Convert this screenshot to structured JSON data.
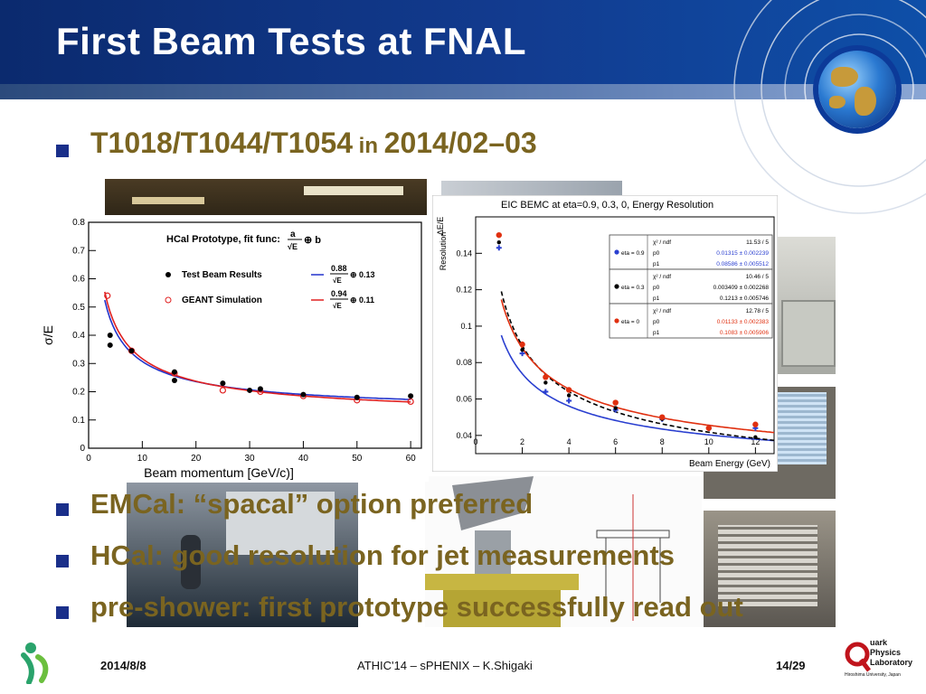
{
  "slide": {
    "title": "First Beam Tests at FNAL",
    "bullets": [
      {
        "main": "T1018/T1044/T1054",
        "mid": " in ",
        "date": "2014/02–03"
      },
      {
        "text": "EMCal: “spacal” option preferred"
      },
      {
        "text": "HCal: good resolution for jet measurements"
      },
      {
        "text": "pre-shower: first prototype successfully read out"
      }
    ],
    "footer": {
      "date": "2014/8/8",
      "center": "ATHIC'14 – sPHENIX – K.Shigaki",
      "page": "14/29"
    },
    "logo_right": {
      "line1": "uark",
      "line2": "Physics",
      "line3": "Laboratory",
      "line4": "Hiroshima University, Japan"
    },
    "colors": {
      "banner": "#123b8f",
      "bullet_text": "#7a6420",
      "bullet_square": "#1a2f8a"
    }
  },
  "chart_data": [
    {
      "type": "scatter",
      "title": "HCal Prototype, fit func:",
      "xlabel": "Beam momentum [GeV/c)]",
      "ylabel": "σ/E",
      "xlim": [
        0,
        62
      ],
      "ylim": [
        0,
        0.8
      ],
      "xticks": [
        0,
        10,
        20,
        30,
        40,
        50,
        60
      ],
      "yticks": [
        0,
        0.1,
        0.2,
        0.3,
        0.4,
        0.5,
        0.6,
        0.7,
        0.8
      ],
      "legend": [
        "Test Beam Results",
        "GEANT Simulation"
      ],
      "fit_labels": [
        "0.88",
        "0.13",
        "0.94",
        "0.11"
      ],
      "series": [
        {
          "name": "Test Beam Results",
          "x": [
            4,
            4,
            8,
            16,
            16,
            25,
            30,
            32,
            40,
            50,
            60
          ],
          "y": [
            0.4,
            0.365,
            0.345,
            0.27,
            0.24,
            0.23,
            0.205,
            0.21,
            0.19,
            0.18,
            0.185
          ],
          "color": "#000000"
        },
        {
          "name": "GEANT Simulation",
          "x": [
            3.5,
            8,
            16,
            25,
            32,
            40,
            50,
            60
          ],
          "y": [
            0.54,
            0.345,
            0.265,
            0.205,
            0.2,
            0.185,
            0.17,
            0.165
          ],
          "color": "#e02020"
        }
      ],
      "fits": [
        {
          "a": 0.88,
          "b": 0.13,
          "color": "#2233cc"
        },
        {
          "a": 0.94,
          "b": 0.11,
          "color": "#e02020"
        }
      ]
    },
    {
      "type": "scatter",
      "title": "EIC BEMC at eta=0.9, 0.3, 0, Energy Resolution",
      "xlabel": "Beam Energy (GeV)",
      "ylabel": "Resolution",
      "xlim": [
        0,
        12.8
      ],
      "ylim": [
        0.03,
        0.16
      ],
      "xticks": [
        0,
        2,
        4,
        6,
        8,
        10,
        12
      ],
      "yticks": [
        0.04,
        0.06,
        0.08,
        0.1,
        0.12,
        0.14
      ],
      "ytick_labels": [
        "0.04",
        "0.06",
        "0.08",
        "0.1",
        "0.12",
        "0.14"
      ],
      "stats": [
        {
          "label": "eta = 0.9",
          "color": "#2a3fd0",
          "rows": [
            [
              "χ² / ndf",
              "11.53 / 5"
            ],
            [
              "p0",
              "0.01315 ± 0.002239"
            ],
            [
              "p1",
              "0.08586 ± 0.005512"
            ]
          ]
        },
        {
          "label": "eta = 0.3",
          "color": "#000000",
          "rows": [
            [
              "χ² / ndf",
              "10.46 / 5"
            ],
            [
              "p0",
              "0.003409 ± 0.002268"
            ],
            [
              "p1",
              "0.1213 ± 0.005746"
            ]
          ]
        },
        {
          "label": "eta = 0",
          "color": "#e03010",
          "rows": [
            [
              "χ² / ndf",
              "12.78 / 5"
            ],
            [
              "p0",
              "0.01133 ± 0.002383"
            ],
            [
              "p1",
              "0.1083 ± 0.005906"
            ]
          ]
        }
      ],
      "series": [
        {
          "name": "eta = 0.9",
          "x": [
            1,
            2,
            3,
            4,
            6,
            8,
            10,
            12
          ],
          "y": [
            0.143,
            0.085,
            0.064,
            0.059,
            0.054,
            0.049,
            0.044,
            0.044
          ],
          "color": "#2a3fd0"
        },
        {
          "name": "eta = 0.3",
          "x": [
            1,
            2,
            3,
            4,
            6,
            8,
            10,
            12
          ],
          "y": [
            0.146,
            0.087,
            0.069,
            0.062,
            0.055,
            0.049,
            0.044,
            0.039
          ],
          "color": "#000000"
        },
        {
          "name": "eta = 0",
          "x": [
            1,
            2,
            3,
            4,
            6,
            8,
            10,
            12
          ],
          "y": [
            0.15,
            0.09,
            0.072,
            0.065,
            0.058,
            0.05,
            0.044,
            0.046
          ],
          "color": "#e03010"
        }
      ],
      "fits": [
        {
          "p0": 0.01315,
          "p1": 0.08586,
          "color": "#2a3fd0"
        },
        {
          "p0": 0.003409,
          "p1": 0.1213,
          "color": "#000000"
        },
        {
          "p0": 0.01133,
          "p1": 0.1083,
          "color": "#e03010"
        }
      ]
    }
  ]
}
